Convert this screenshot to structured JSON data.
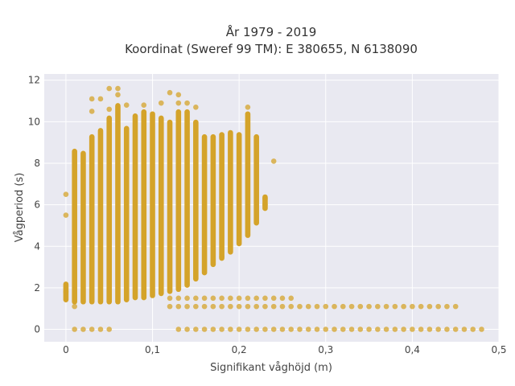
{
  "chart_data": {
    "type": "scatter",
    "title_lines": [
      "År 1979 - 2019",
      "Koordinat (Sweref 99 TM): E 380655, N 6138090"
    ],
    "xlabel": "Signifikant våghöjd (m)",
    "ylabel": "Vågperiod (s)",
    "xlim": [
      -0.025,
      0.5
    ],
    "ylim": [
      -0.6,
      12.3
    ],
    "x_ticks": [
      0,
      0.1,
      0.2,
      0.3,
      0.4,
      0.5
    ],
    "x_tick_labels": [
      "0",
      "0,1",
      "0,2",
      "0,3",
      "0,4",
      "0,5"
    ],
    "y_ticks": [
      0,
      2,
      4,
      6,
      8,
      10,
      12
    ],
    "y_tick_labels": [
      "0",
      "2",
      "4",
      "6",
      "8",
      "10",
      "12"
    ],
    "grid": true,
    "colors": {
      "marker": "#d4a32a",
      "plot_bg": "#e9e9f1",
      "grid": "#ffffff"
    },
    "columns": [
      {
        "x": 0.0,
        "ymin": 1.3,
        "ymax": 2.3
      },
      {
        "x": 0.01,
        "ymin": 1.2,
        "ymax": 8.7
      },
      {
        "x": 0.02,
        "ymin": 1.2,
        "ymax": 8.6
      },
      {
        "x": 0.03,
        "ymin": 1.2,
        "ymax": 9.4
      },
      {
        "x": 0.04,
        "ymin": 1.2,
        "ymax": 9.7
      },
      {
        "x": 0.05,
        "ymin": 1.2,
        "ymax": 10.3
      },
      {
        "x": 0.06,
        "ymin": 1.2,
        "ymax": 10.9
      },
      {
        "x": 0.07,
        "ymin": 1.3,
        "ymax": 9.8
      },
      {
        "x": 0.08,
        "ymin": 1.4,
        "ymax": 10.4
      },
      {
        "x": 0.09,
        "ymin": 1.4,
        "ymax": 10.6
      },
      {
        "x": 0.1,
        "ymin": 1.5,
        "ymax": 10.5
      },
      {
        "x": 0.11,
        "ymin": 1.6,
        "ymax": 10.3
      },
      {
        "x": 0.12,
        "ymin": 1.7,
        "ymax": 10.1
      },
      {
        "x": 0.13,
        "ymin": 1.8,
        "ymax": 10.6
      },
      {
        "x": 0.14,
        "ymin": 2.0,
        "ymax": 10.6
      },
      {
        "x": 0.15,
        "ymin": 2.3,
        "ymax": 10.1
      },
      {
        "x": 0.16,
        "ymin": 2.6,
        "ymax": 9.4
      },
      {
        "x": 0.17,
        "ymin": 3.0,
        "ymax": 9.4
      },
      {
        "x": 0.18,
        "ymin": 3.3,
        "ymax": 9.5
      },
      {
        "x": 0.19,
        "ymin": 3.6,
        "ymax": 9.6
      },
      {
        "x": 0.2,
        "ymin": 4.0,
        "ymax": 9.5
      },
      {
        "x": 0.21,
        "ymin": 4.4,
        "ymax": 10.5
      },
      {
        "x": 0.22,
        "ymin": 5.0,
        "ymax": 9.4
      },
      {
        "x": 0.23,
        "ymin": 5.7,
        "ymax": 6.5
      }
    ],
    "bands": [
      {
        "y": 0.0,
        "x": [
          0.01,
          0.02,
          0.03,
          0.04,
          0.05,
          0.13,
          0.14,
          0.15,
          0.16,
          0.17,
          0.18,
          0.19,
          0.2,
          0.21,
          0.22,
          0.23,
          0.24,
          0.25,
          0.26,
          0.27,
          0.28,
          0.29,
          0.3,
          0.31,
          0.32,
          0.33,
          0.34,
          0.35,
          0.36,
          0.37,
          0.38,
          0.39,
          0.4,
          0.41,
          0.42,
          0.43,
          0.44,
          0.45,
          0.46,
          0.47,
          0.48
        ]
      },
      {
        "y": 1.1,
        "x": [
          0.12,
          0.13,
          0.14,
          0.15,
          0.16,
          0.17,
          0.18,
          0.19,
          0.2,
          0.21,
          0.22,
          0.23,
          0.24,
          0.25,
          0.26,
          0.27,
          0.28,
          0.29,
          0.3,
          0.31,
          0.32,
          0.33,
          0.34,
          0.35,
          0.36,
          0.37,
          0.38,
          0.39,
          0.4,
          0.41,
          0.42,
          0.43,
          0.44,
          0.45
        ]
      },
      {
        "y": 1.5,
        "x": [
          0.12,
          0.13,
          0.14,
          0.15,
          0.16,
          0.17,
          0.18,
          0.19,
          0.2,
          0.21,
          0.22,
          0.23,
          0.24,
          0.25,
          0.26
        ]
      }
    ],
    "points": [
      [
        0.0,
        6.5
      ],
      [
        0.0,
        5.5
      ],
      [
        0.03,
        11.1
      ],
      [
        0.04,
        11.1
      ],
      [
        0.03,
        10.5
      ],
      [
        0.05,
        11.6
      ],
      [
        0.06,
        11.6
      ],
      [
        0.06,
        11.3
      ],
      [
        0.07,
        10.8
      ],
      [
        0.05,
        10.6
      ],
      [
        0.12,
        11.4
      ],
      [
        0.13,
        11.3
      ],
      [
        0.13,
        10.9
      ],
      [
        0.14,
        10.9
      ],
      [
        0.15,
        10.7
      ],
      [
        0.11,
        10.9
      ],
      [
        0.09,
        10.8
      ],
      [
        0.21,
        10.7
      ],
      [
        0.24,
        8.1
      ],
      [
        0.23,
        6.0
      ],
      [
        0.23,
        6.3
      ],
      [
        0.18,
        3.5
      ],
      [
        0.0,
        1.8
      ],
      [
        0.01,
        1.1
      ]
    ]
  }
}
